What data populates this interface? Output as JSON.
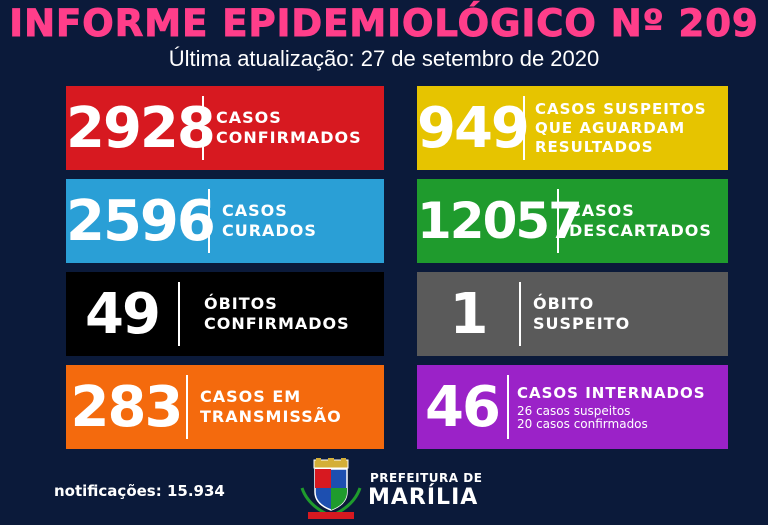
{
  "header": {
    "title": "INFORME EPIDEMIOLÓGICO Nº 209",
    "subtitle": "Última atualização: 27 de setembro de 2020"
  },
  "colors": {
    "background": "#0b1a3a",
    "title": "#ff3e8a",
    "red": "#d71920",
    "yellow": "#e6c400",
    "blue": "#2a9fd6",
    "green": "#1f9b2d",
    "black": "#000000",
    "gray": "#5a5a5a",
    "orange": "#f46a0d",
    "purple": "#9b22c8"
  },
  "cards": {
    "confirmed": {
      "value": "2928",
      "label1": "CASOS",
      "label2": "CONFIRMADOS"
    },
    "suspect_waiting": {
      "value": "949",
      "label1": "CASOS SUSPEITOS",
      "label2": "QUE AGUARDAM",
      "label3": "RESULTADOS"
    },
    "cured": {
      "value": "2596",
      "label1": "CASOS",
      "label2": "CURADOS"
    },
    "discarded": {
      "value": "12057",
      "label1": "CASOS",
      "label2": "DESCARTADOS"
    },
    "deaths": {
      "value": "49",
      "label1": "ÓBITOS",
      "label2": "CONFIRMADOS"
    },
    "suspect_death": {
      "value": "1",
      "label1": "ÓBITO",
      "label2": "SUSPEITO"
    },
    "transmission": {
      "value": "283",
      "label1": "CASOS EM",
      "label2": "TRANSMISSÃO"
    },
    "hospitalized": {
      "value": "46",
      "label1": "CASOS INTERNADOS",
      "detail1": "26 casos suspeitos",
      "detail2": "20 casos confirmados"
    }
  },
  "footer": {
    "notifications": "notificações: 15.934",
    "prefeitura_small": "PREFEITURA DE",
    "prefeitura_big": "MARÍLIA",
    "crest_icon": "city-coat-of-arms-icon"
  }
}
